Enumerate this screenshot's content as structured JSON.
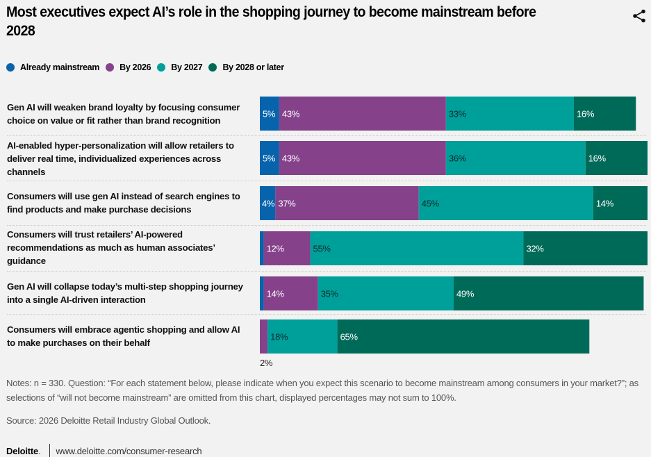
{
  "header": {
    "title": "Most executives expect AI’s role in the shopping journey to become mainstream before 2028",
    "share_icon": "share-icon"
  },
  "chart_data": {
    "type": "bar",
    "orientation": "horizontal",
    "stacked": true,
    "title": "Most executives expect AI’s role in the shopping journey to become mainstream before 2028",
    "xlabel": "",
    "ylabel": "",
    "xlim": [
      0,
      100
    ],
    "grid": false,
    "legend_position": "top-left",
    "categories": [
      "Gen AI will weaken brand loyalty by focusing consumer choice on value or fit rather than brand recognition",
      "AI-enabled hyper-personalization will allow retailers to deliver real time, individualized experiences across channels",
      "Consumers will use gen AI instead of search engines to find products and make purchase decisions",
      "Consumers will trust retailers’ AI-powered recommendations as much as human associates’ guidance",
      "Gen AI will collapse today’s multi-step shopping journey into a single AI-driven interaction",
      "Consumers will embrace agentic shopping and allow AI to make purchases on their behalf"
    ],
    "series": [
      {
        "name": "Already mainstream",
        "color": "#0764ac",
        "label_color": "#ffffff",
        "values": [
          5,
          5,
          4,
          1,
          1,
          0
        ],
        "labels": [
          "5%",
          "5%",
          "4%",
          "",
          "",
          ""
        ]
      },
      {
        "name": "By 2026",
        "color": "#85428b",
        "label_color": "#ffffff",
        "values": [
          43,
          43,
          37,
          12,
          14,
          2
        ],
        "labels": [
          "43%",
          "43%",
          "37%",
          "12%",
          "14%",
          "2%"
        ]
      },
      {
        "name": "By 2027",
        "color": "#00a09a",
        "label_color": "#0b2a2a",
        "values": [
          33,
          36,
          45,
          55,
          35,
          18
        ],
        "labels": [
          "33%",
          "36%",
          "45%",
          "55%",
          "35%",
          "18%"
        ]
      },
      {
        "name": "By 2028 or later",
        "color": "#006a58",
        "label_color": "#ffffff",
        "values": [
          16,
          16,
          14,
          32,
          49,
          65
        ],
        "labels": [
          "16%",
          "16%",
          "14%",
          "32%",
          "49%",
          "65%"
        ]
      }
    ],
    "outside_labels": [
      {
        "row": 5,
        "series": 1,
        "text": "2%"
      }
    ]
  },
  "row_labels": [
    [
      "Gen AI will weaken brand loyalty by focusing consumer",
      "choice on value or fit rather than brand recognition"
    ],
    [
      "AI-enabled hyper-personalization will allow retailers to",
      "deliver real time, individualized experiences across",
      "channels"
    ],
    [
      "Consumers will use gen AI instead of search engines to",
      "find products and make purchase decisions"
    ],
    [
      "Consumers will trust retailers’ AI-powered",
      "recommendations as much as human associates’",
      "guidance"
    ],
    [
      "Gen AI will collapse today’s multi-step shopping journey",
      "into a single AI-driven interaction"
    ],
    [
      "Consumers will embrace agentic shopping and allow AI",
      "to make purchases on their behalf"
    ]
  ],
  "footer": {
    "notes": "Notes: n = 330. Question: “For each statement below, please indicate when you expect this scenario to become mainstream among consumers in your market?”; as selections of “will not become mainstream” are omitted from this chart, displayed percentages may not sum to 100%.",
    "source": "Source: 2026 Deloitte Retail Industry Global Outlook.",
    "brand": "Deloitte",
    "brand_dot": ".",
    "url": "www.deloitte.com/consumer-research"
  }
}
